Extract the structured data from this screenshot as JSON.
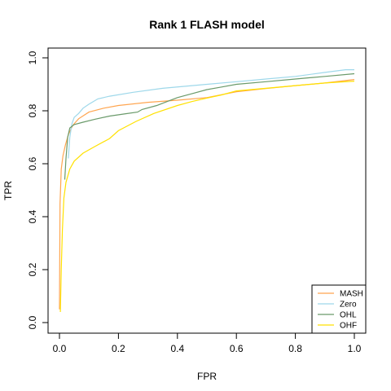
{
  "chart_data": {
    "type": "line",
    "title": "Rank 1 FLASH model",
    "xlabel": "FPR",
    "ylabel": "TPR",
    "xlim": [
      0,
      1
    ],
    "ylim": [
      0,
      1
    ],
    "xticks": [
      "0.0",
      "0.2",
      "0.4",
      "0.6",
      "0.8",
      "1.0"
    ],
    "yticks": [
      "0.0",
      "0.2",
      "0.4",
      "0.6",
      "0.8",
      "1.0"
    ],
    "grid": false,
    "legend_position": "bottom-right",
    "series": [
      {
        "name": "MASH",
        "color": "#FFA54F",
        "points": [
          [
            0.0,
            0.05
          ],
          [
            0.002,
            0.45
          ],
          [
            0.006,
            0.58
          ],
          [
            0.012,
            0.63
          ],
          [
            0.02,
            0.67
          ],
          [
            0.03,
            0.71
          ],
          [
            0.045,
            0.745
          ],
          [
            0.065,
            0.77
          ],
          [
            0.1,
            0.795
          ],
          [
            0.15,
            0.81
          ],
          [
            0.2,
            0.82
          ],
          [
            0.3,
            0.832
          ],
          [
            0.4,
            0.84
          ],
          [
            0.5,
            0.85
          ],
          [
            0.6,
            0.872
          ],
          [
            0.7,
            0.884
          ],
          [
            0.8,
            0.895
          ],
          [
            0.9,
            0.905
          ],
          [
            1.0,
            0.918
          ]
        ]
      },
      {
        "name": "Zero",
        "color": "#9ED8EA",
        "points": [
          [
            0.03,
            0.62
          ],
          [
            0.035,
            0.7
          ],
          [
            0.042,
            0.75
          ],
          [
            0.05,
            0.775
          ],
          [
            0.065,
            0.79
          ],
          [
            0.08,
            0.81
          ],
          [
            0.1,
            0.825
          ],
          [
            0.13,
            0.845
          ],
          [
            0.17,
            0.855
          ],
          [
            0.25,
            0.87
          ],
          [
            0.35,
            0.885
          ],
          [
            0.5,
            0.9
          ],
          [
            0.6,
            0.91
          ],
          [
            0.7,
            0.92
          ],
          [
            0.8,
            0.93
          ],
          [
            0.9,
            0.945
          ],
          [
            0.97,
            0.955
          ],
          [
            1.0,
            0.955
          ]
        ]
      },
      {
        "name": "OHL",
        "color": "#6A9A6A",
        "points": [
          [
            0.018,
            0.54
          ],
          [
            0.022,
            0.62
          ],
          [
            0.028,
            0.7
          ],
          [
            0.035,
            0.735
          ],
          [
            0.05,
            0.748
          ],
          [
            0.08,
            0.757
          ],
          [
            0.12,
            0.768
          ],
          [
            0.17,
            0.78
          ],
          [
            0.22,
            0.788
          ],
          [
            0.265,
            0.795
          ],
          [
            0.28,
            0.805
          ],
          [
            0.33,
            0.82
          ],
          [
            0.4,
            0.85
          ],
          [
            0.45,
            0.865
          ],
          [
            0.5,
            0.88
          ],
          [
            0.55,
            0.89
          ],
          [
            0.6,
            0.9
          ],
          [
            0.7,
            0.91
          ],
          [
            0.8,
            0.92
          ],
          [
            0.9,
            0.93
          ],
          [
            1.0,
            0.94
          ]
        ]
      },
      {
        "name": "OHF",
        "color": "#FFE100",
        "points": [
          [
            0.003,
            0.04
          ],
          [
            0.006,
            0.2
          ],
          [
            0.01,
            0.35
          ],
          [
            0.015,
            0.47
          ],
          [
            0.022,
            0.53
          ],
          [
            0.035,
            0.58
          ],
          [
            0.05,
            0.61
          ],
          [
            0.08,
            0.64
          ],
          [
            0.12,
            0.665
          ],
          [
            0.17,
            0.695
          ],
          [
            0.2,
            0.725
          ],
          [
            0.26,
            0.76
          ],
          [
            0.32,
            0.79
          ],
          [
            0.4,
            0.82
          ],
          [
            0.45,
            0.835
          ],
          [
            0.5,
            0.848
          ],
          [
            0.55,
            0.86
          ],
          [
            0.6,
            0.875
          ],
          [
            0.7,
            0.885
          ],
          [
            0.8,
            0.895
          ],
          [
            0.9,
            0.905
          ],
          [
            1.0,
            0.912
          ]
        ]
      }
    ]
  }
}
